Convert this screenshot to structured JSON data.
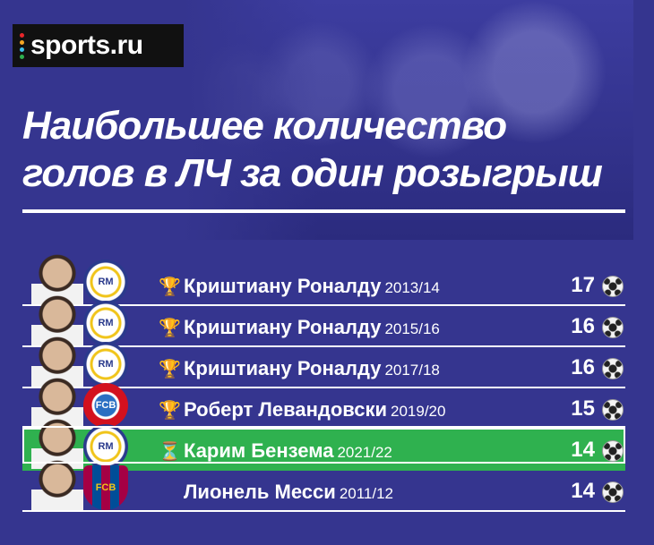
{
  "brand": {
    "logo_text": "sports.ru",
    "dot_colors": [
      "#e8262a",
      "#f5a623",
      "#3ec1ea",
      "#2fb14f",
      "#9b59b6",
      "#f5e323"
    ]
  },
  "title": {
    "line1": "Наибольшее количество",
    "line2": "голов в ЛЧ за один розыгрыш"
  },
  "colors": {
    "background": "#35358f",
    "highlight": "#2fb14f"
  },
  "rows": [
    {
      "avatar": "cristiano-ronaldo-photo",
      "club": "real-madrid-crest",
      "club_short": "RM",
      "status_icon": "trophy-icon",
      "status_glyph": "🏆",
      "name": "Криштиану Роналду",
      "season": "2013/14",
      "goals": "17",
      "highlighted": false
    },
    {
      "avatar": "cristiano-ronaldo-photo",
      "club": "real-madrid-crest",
      "club_short": "RM",
      "status_icon": "trophy-icon",
      "status_glyph": "🏆",
      "name": "Криштиану Роналду",
      "season": "2015/16",
      "goals": "16",
      "highlighted": false
    },
    {
      "avatar": "cristiano-ronaldo-photo",
      "club": "real-madrid-crest",
      "club_short": "RM",
      "status_icon": "trophy-icon",
      "status_glyph": "🏆",
      "name": "Криштиану Роналду",
      "season": "2017/18",
      "goals": "16",
      "highlighted": false
    },
    {
      "avatar": "robert-lewandowski-photo",
      "club": "bayern-crest",
      "club_short": "FCB",
      "status_icon": "trophy-icon",
      "status_glyph": "🏆",
      "name": "Роберт Левандовски",
      "season": "2019/20",
      "goals": "15",
      "highlighted": false
    },
    {
      "avatar": "karim-benzema-photo",
      "club": "real-madrid-crest",
      "club_short": "RM",
      "status_icon": "hourglass-icon",
      "status_glyph": "⏳",
      "name": "Карим Бензема",
      "season": "2021/22",
      "goals": "14",
      "highlighted": true
    },
    {
      "avatar": "lionel-messi-photo",
      "club": "barcelona-crest",
      "club_short": "FCB",
      "status_icon": "",
      "status_glyph": "",
      "name": "Лионель Месси",
      "season": "2011/12",
      "goals": "14",
      "highlighted": false
    }
  ]
}
